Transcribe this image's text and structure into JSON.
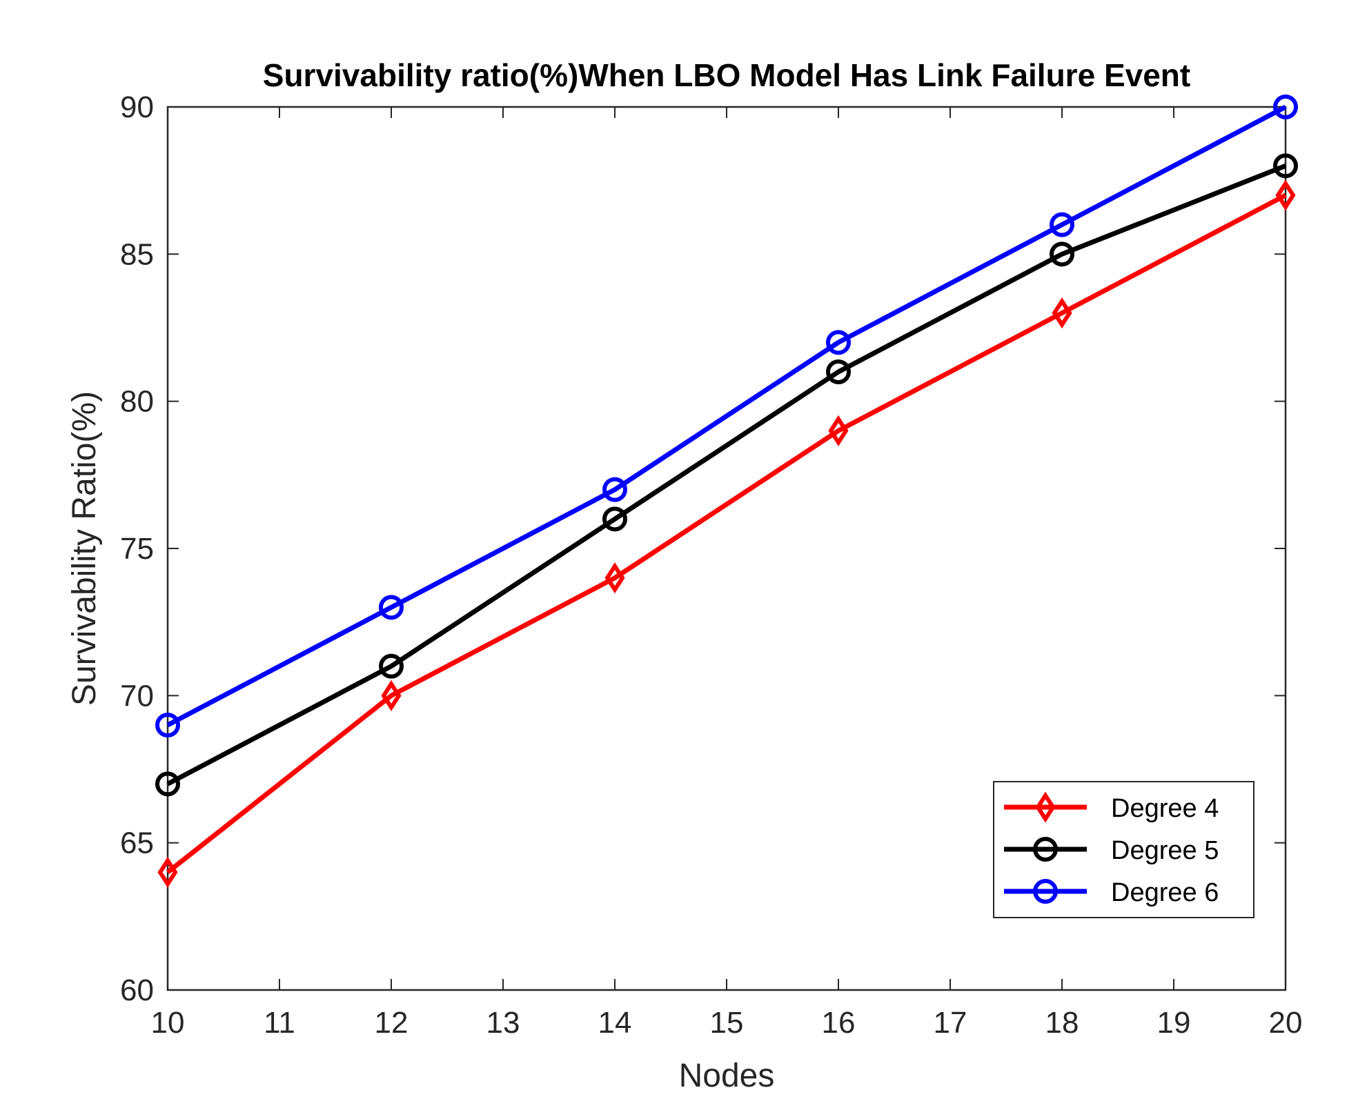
{
  "chart_data": {
    "type": "line",
    "title": "Survivability ratio(%)When LBO Model Has Link Failure Event",
    "xlabel": "Nodes",
    "ylabel": "Survivability Ratio(%)",
    "xlim": [
      10,
      20
    ],
    "ylim": [
      60,
      90
    ],
    "xticks": [
      10,
      11,
      12,
      13,
      14,
      15,
      16,
      17,
      18,
      19,
      20
    ],
    "yticks": [
      60,
      65,
      70,
      75,
      80,
      85,
      90
    ],
    "grid": false,
    "legend_position": "bottom-right",
    "x": [
      10,
      12,
      14,
      16,
      18,
      20
    ],
    "series": [
      {
        "name": "Degree 4",
        "color": "#ff0000",
        "marker": "diamond",
        "values": [
          64,
          70,
          74,
          79,
          83,
          87
        ]
      },
      {
        "name": "Degree 5",
        "color": "#000000",
        "marker": "circle",
        "values": [
          67,
          71,
          76,
          81,
          85,
          88
        ]
      },
      {
        "name": "Degree 6",
        "color": "#0000ff",
        "marker": "circle",
        "values": [
          69,
          73,
          77,
          82,
          86,
          90
        ]
      }
    ]
  }
}
